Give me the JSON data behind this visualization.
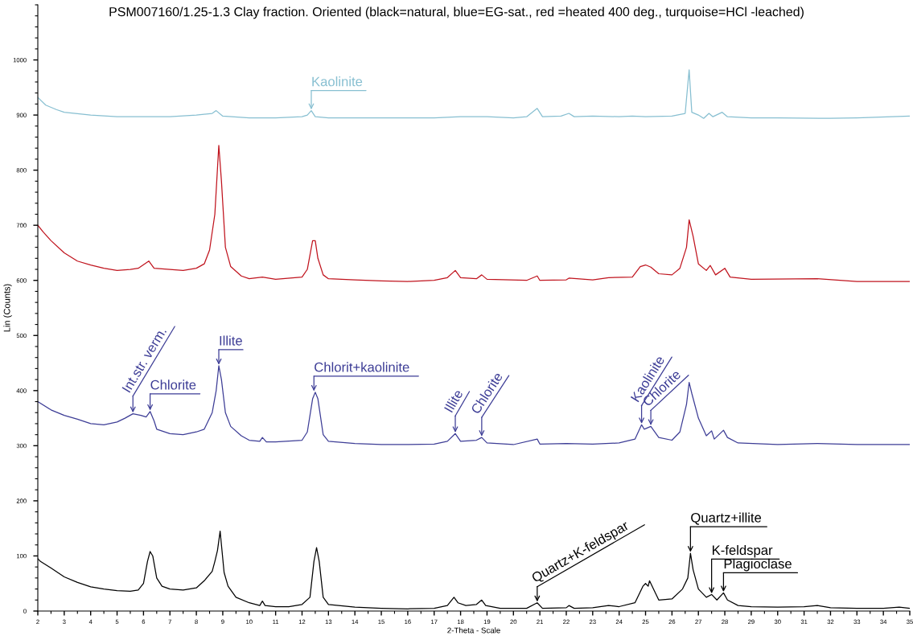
{
  "chart_data": {
    "type": "line",
    "title": "PSM007160/1.25-1.3 Clay fraction. Oriented (black=natural, blue=EG-sat., red =heated 400 deg., turquoise=HCl -leached)",
    "xlabel": "2-Theta - Scale",
    "ylabel": "Lin (Counts)",
    "xlim": [
      2,
      35
    ],
    "xticks": [
      2,
      3,
      4,
      5,
      6,
      7,
      8,
      9,
      10,
      11,
      12,
      13,
      14,
      15,
      16,
      17,
      18,
      19,
      20,
      21,
      22,
      23,
      24,
      25,
      26,
      27,
      28,
      29,
      30,
      31,
      32,
      33,
      34,
      35
    ],
    "ylim": [
      0,
      1100
    ],
    "yticks": [
      0,
      100,
      200,
      300,
      400,
      500,
      600,
      700,
      800,
      900,
      1000
    ],
    "series": [
      {
        "color": "#000000",
        "x": [
          2.0,
          2.1,
          2.5,
          3,
          3.5,
          4,
          4.5,
          5,
          5.5,
          5.8,
          6.0,
          6.15,
          6.25,
          6.35,
          6.5,
          6.7,
          7,
          7.5,
          8,
          8.3,
          8.6,
          8.7,
          8.8,
          8.9,
          8.95,
          9.05,
          9.2,
          9.5,
          10,
          10.4,
          10.5,
          10.6,
          11,
          11.5,
          12,
          12.3,
          12.45,
          12.55,
          12.65,
          12.8,
          13,
          14,
          15,
          16,
          17,
          17.5,
          17.75,
          17.9,
          18.2,
          18.6,
          18.8,
          18.95,
          19.5,
          20.5,
          20.9,
          21.1,
          22,
          22.1,
          22.3,
          23,
          23.6,
          24,
          24.6,
          24.9,
          25.0,
          25.1,
          25.15,
          25.35,
          25.5,
          26,
          26.4,
          26.6,
          26.7,
          26.8,
          27,
          27.3,
          27.5,
          27.7,
          27.95,
          28.1,
          28.5,
          29,
          30,
          31,
          31.5,
          32,
          33,
          34,
          34.6,
          35
        ],
        "values": [
          95,
          90,
          78,
          62,
          52,
          44,
          40,
          37,
          36,
          38,
          50,
          90,
          108,
          100,
          60,
          45,
          40,
          38,
          42,
          55,
          72,
          90,
          110,
          145,
          120,
          70,
          45,
          25,
          15,
          10,
          18,
          10,
          8,
          8,
          12,
          25,
          90,
          115,
          90,
          25,
          12,
          7,
          5,
          4,
          5,
          10,
          25,
          15,
          10,
          12,
          20,
          10,
          5,
          5,
          15,
          5,
          6,
          10,
          5,
          6,
          10,
          8,
          15,
          45,
          50,
          45,
          55,
          35,
          20,
          22,
          40,
          60,
          105,
          75,
          40,
          25,
          30,
          20,
          33,
          20,
          10,
          8,
          7,
          8,
          10,
          6,
          5,
          5,
          7,
          5
        ]
      },
      {
        "color": "#3d3d96",
        "x": [
          2.0,
          2.5,
          3,
          3.5,
          4,
          4.5,
          5,
          5.3,
          5.6,
          5.9,
          6.1,
          6.25,
          6.4,
          6.5,
          7,
          7.5,
          8,
          8.3,
          8.6,
          8.75,
          8.85,
          8.95,
          9.1,
          9.3,
          9.7,
          10,
          10.4,
          10.5,
          10.65,
          11,
          12,
          12.2,
          12.4,
          12.5,
          12.6,
          12.8,
          13,
          14,
          15,
          16,
          17,
          17.5,
          17.8,
          18,
          18.6,
          18.8,
          19,
          20,
          20.9,
          21.0,
          22,
          23,
          24,
          24.6,
          24.85,
          24.95,
          25.2,
          25.5,
          26,
          26.3,
          26.55,
          26.65,
          26.75,
          27,
          27.3,
          27.5,
          27.6,
          27.95,
          28.1,
          28.5,
          30,
          31.5,
          33,
          35
        ],
        "values": [
          380,
          365,
          355,
          348,
          340,
          338,
          343,
          350,
          358,
          355,
          352,
          362,
          345,
          330,
          322,
          320,
          325,
          330,
          360,
          400,
          445,
          420,
          360,
          335,
          318,
          310,
          308,
          315,
          307,
          307,
          310,
          325,
          385,
          397,
          385,
          320,
          308,
          304,
          302,
          302,
          303,
          308,
          322,
          308,
          310,
          315,
          305,
          302,
          312,
          303,
          304,
          303,
          305,
          312,
          338,
          330,
          335,
          315,
          310,
          325,
          375,
          415,
          395,
          350,
          318,
          327,
          312,
          328,
          315,
          305,
          302,
          304,
          302,
          302
        ]
      },
      {
        "color": "#c0141e",
        "x": [
          2.0,
          2.2,
          2.5,
          3,
          3.5,
          4,
          4.5,
          5,
          5.5,
          5.8,
          6.2,
          6.4,
          7,
          7.5,
          8,
          8.3,
          8.5,
          8.7,
          8.85,
          8.95,
          9.1,
          9.3,
          9.7,
          10,
          10.5,
          11,
          12,
          12.2,
          12.4,
          12.5,
          12.6,
          12.8,
          13,
          14,
          15,
          16,
          17,
          17.5,
          17.8,
          18.0,
          18.6,
          18.8,
          19,
          20.5,
          20.9,
          21.0,
          22,
          22.1,
          23,
          23.6,
          24.5,
          24.8,
          25,
          25.2,
          25.5,
          26,
          26.3,
          26.55,
          26.65,
          26.8,
          27,
          27.3,
          27.45,
          27.65,
          28.0,
          28.2,
          29,
          31.5,
          33,
          35
        ],
        "values": [
          700,
          688,
          672,
          650,
          635,
          628,
          622,
          618,
          620,
          622,
          635,
          622,
          620,
          618,
          622,
          630,
          655,
          720,
          845,
          780,
          660,
          625,
          608,
          603,
          606,
          602,
          606,
          620,
          672,
          672,
          640,
          610,
          603,
          601,
          599,
          598,
          600,
          605,
          618,
          605,
          603,
          610,
          602,
          600,
          608,
          600,
          601,
          604,
          601,
          605,
          606,
          625,
          628,
          624,
          612,
          610,
          622,
          660,
          710,
          680,
          630,
          618,
          627,
          610,
          622,
          606,
          602,
          603,
          598,
          598
        ]
      },
      {
        "color": "#87bfd1",
        "x": [
          2.0,
          2.3,
          2.7,
          3,
          4,
          5,
          6,
          7,
          8,
          8.6,
          8.75,
          9,
          10,
          11,
          12,
          12.2,
          12.35,
          12.5,
          13,
          15,
          17,
          18,
          19,
          20,
          20.5,
          20.9,
          21.1,
          21.8,
          22.1,
          22.3,
          23,
          24,
          24.5,
          25,
          26,
          26.5,
          26.65,
          26.75,
          27,
          27.2,
          27.4,
          27.55,
          27.9,
          28.1,
          29,
          30,
          32,
          33,
          35
        ],
        "values": [
          932,
          918,
          910,
          905,
          900,
          897,
          897,
          897,
          900,
          903,
          908,
          898,
          895,
          895,
          897,
          900,
          908,
          897,
          895,
          895,
          895,
          897,
          897,
          895,
          897,
          912,
          897,
          898,
          903,
          897,
          898,
          897,
          898,
          897,
          898,
          903,
          982,
          905,
          900,
          894,
          903,
          897,
          905,
          897,
          895,
          895,
          894,
          895,
          898
        ]
      }
    ],
    "annotations": [
      {
        "text": "Kaolinite",
        "x": 12.35,
        "y": 908
      },
      {
        "text": "Int.str. verm.",
        "x": 5.6,
        "y": 358
      },
      {
        "text": "Chlorite",
        "x": 6.25,
        "y": 362
      },
      {
        "text": "Illite",
        "x": 8.85,
        "y": 445
      },
      {
        "text": "Chlorit+kaolinite",
        "x": 12.45,
        "y": 397
      },
      {
        "text": "Illite",
        "x": 17.8,
        "y": 322
      },
      {
        "text": "Chlorite",
        "x": 18.8,
        "y": 315
      },
      {
        "text": "Kaolinite",
        "x": 24.85,
        "y": 338
      },
      {
        "text": "Chlorite",
        "x": 25.2,
        "y": 335
      },
      {
        "text": "Quartz+K-feldspar",
        "x": 20.9,
        "y": 15
      },
      {
        "text": "Quartz+illite",
        "x": 26.7,
        "y": 105
      },
      {
        "text": "K-feldspar",
        "x": 27.5,
        "y": 30
      },
      {
        "text": "Plagioclase",
        "x": 27.95,
        "y": 33
      }
    ]
  }
}
